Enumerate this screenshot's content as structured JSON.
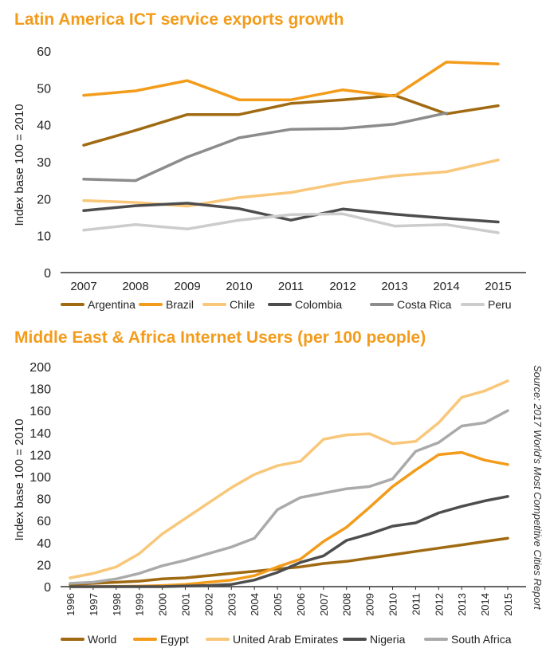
{
  "colors": {
    "title": "#f39c1c",
    "axis": "#333333"
  },
  "source_note": "Source: 2017 World's Most Competitive Cities Report",
  "chart_data": [
    {
      "type": "line",
      "title": "Latin America ICT service exports growth",
      "ylabel": "Index base 100 = 2010",
      "xlabel": "",
      "ylim": [
        0,
        60
      ],
      "yticks": [
        "0",
        "10",
        "20",
        "30",
        "40",
        "50",
        "60"
      ],
      "categories": [
        "2007",
        "2008",
        "2009",
        "2010",
        "2011",
        "2012",
        "2013",
        "2014",
        "2015"
      ],
      "legend_position": "bottom",
      "grid": false,
      "series": [
        {
          "name": "Argentina",
          "color": "#a06a12",
          "values": [
            34.5,
            38.5,
            42.8,
            42.8,
            45.8,
            46.8,
            48,
            43,
            45.2
          ]
        },
        {
          "name": "Brazil",
          "color": "#f39c1c",
          "values": [
            48,
            49.2,
            52,
            46.8,
            46.8,
            49.5,
            47.8,
            57,
            56.5
          ]
        },
        {
          "name": "Chile",
          "color": "#f9c77a",
          "values": [
            19.5,
            19,
            18,
            20.3,
            21.7,
            24.3,
            26.2,
            27.3,
            30.5
          ]
        },
        {
          "name": "Colombia",
          "color": "#4d4d4d",
          "values": [
            16.8,
            18.1,
            18.8,
            17.3,
            14.2,
            17.2,
            15.8,
            14.7,
            13.7
          ]
        },
        {
          "name": "Costa Rica",
          "color": "#8c8c8c",
          "values": [
            25.3,
            24.9,
            31.3,
            36.5,
            38.8,
            39,
            40.2,
            43.2,
            null
          ]
        },
        {
          "name": "Peru",
          "color": "#cccccc",
          "values": [
            11.5,
            13,
            11.8,
            14.2,
            15.7,
            15.9,
            12.6,
            13,
            10.8
          ]
        }
      ]
    },
    {
      "type": "line",
      "title": "Middle East & Africa Internet Users (per 100 people)",
      "ylabel": "Index base 100 = 2010",
      "xlabel": "",
      "ylim": [
        0,
        200
      ],
      "yticks": [
        "0",
        "20",
        "40",
        "60",
        "80",
        "100",
        "120",
        "140",
        "160",
        "180",
        "200"
      ],
      "categories": [
        "1996",
        "1997",
        "1998",
        "1999",
        "2000",
        "2001",
        "2002",
        "2003",
        "2004",
        "2005",
        "2006",
        "2007",
        "2008",
        "2009",
        "2010",
        "2011",
        "2012",
        "2013",
        "2014",
        "2015"
      ],
      "legend_position": "bottom",
      "grid": false,
      "series": [
        {
          "name": "World",
          "color": "#a06a12",
          "values": [
            2,
            3,
            4,
            5,
            7,
            8,
            10,
            12,
            14,
            16,
            18,
            21,
            23,
            26,
            29,
            32,
            35,
            38,
            41,
            44
          ]
        },
        {
          "name": "Egypt",
          "color": "#f39c1c",
          "values": [
            0,
            0,
            0.2,
            0.4,
            1,
            2,
            4,
            6,
            10,
            18,
            25,
            41,
            54,
            72,
            91,
            106,
            120,
            122,
            115,
            111
          ]
        },
        {
          "name": "United Arab Emirates",
          "color": "#f9c77a",
          "values": [
            8,
            12,
            18,
            30,
            48,
            62,
            76,
            90,
            102,
            110,
            114,
            134,
            138,
            139,
            130,
            132,
            149,
            172,
            178,
            187
          ]
        },
        {
          "name": "Nigeria",
          "color": "#4d4d4d",
          "values": [
            0,
            0,
            0,
            0,
            0,
            0.5,
            1,
            2,
            6,
            13,
            22,
            28,
            42,
            48,
            55,
            58,
            67,
            73,
            78,
            82
          ]
        },
        {
          "name": "South Africa",
          "color": "#aaaaaa",
          "values": [
            3,
            4,
            7,
            12,
            19,
            24,
            30,
            36,
            44,
            70,
            81,
            85,
            89,
            91,
            98,
            123,
            131,
            146,
            149,
            160
          ]
        }
      ]
    }
  ]
}
